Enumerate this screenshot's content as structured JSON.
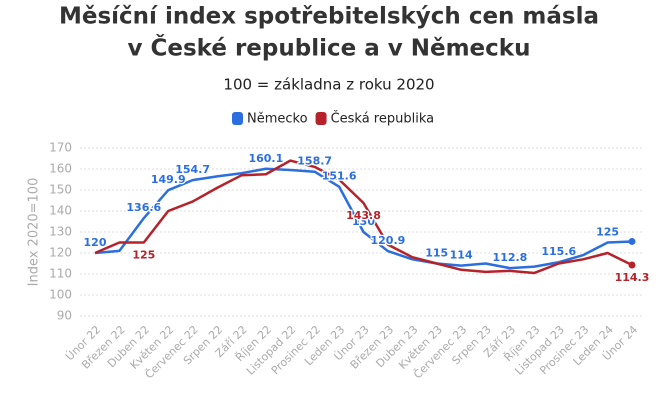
{
  "chart_data": {
    "type": "line",
    "title": [
      "Měsíční index spotřebitelských cen másla",
      "v České republice a v Německu"
    ],
    "subtitle": "100 = základna z roku 2020",
    "y_label": "Index 2020=100",
    "categories": [
      "Únor 22",
      "Březen 22",
      "Duben 22",
      "Květen 22",
      "Červenec 22",
      "Srpen 22",
      "Září 22",
      "Říjen 22",
      "Listopad 22",
      "Prosinec 22",
      "Leden 23",
      "Únor 23",
      "Březen 23",
      "Duben 23",
      "Květen 23",
      "Červenec 23",
      "Srpen 23",
      "Září 23",
      "Říjen 23",
      "Listopad 23",
      "Prosinec 23",
      "Leden 24",
      "Únor 24"
    ],
    "series": [
      {
        "name": "Německo",
        "color": "#2a6ee0",
        "values": [
          120,
          121,
          136.6,
          149.9,
          154.7,
          156.5,
          158,
          160.1,
          159.5,
          158.7,
          151.6,
          130,
          120.9,
          117,
          115,
          114,
          115,
          112.8,
          113.5,
          115.6,
          119,
          125,
          125.5
        ],
        "value_labels": [
          "120",
          null,
          "136.6",
          "149.9",
          "154.7",
          null,
          null,
          "160.1",
          null,
          "158.7",
          "151.6",
          "130",
          "120.9",
          null,
          "115",
          "114",
          null,
          "112.8",
          null,
          "115.6",
          null,
          "125",
          null
        ]
      },
      {
        "name": "Česká republika",
        "color": "#b5222a",
        "values": [
          120,
          125,
          125,
          140,
          144.5,
          151,
          157,
          157.5,
          164,
          161,
          155,
          143.8,
          124,
          118,
          115,
          112,
          111,
          111.5,
          110.5,
          115,
          117,
          120,
          114.3
        ],
        "value_labels": [
          null,
          null,
          "125",
          null,
          null,
          null,
          null,
          null,
          null,
          null,
          null,
          "143.8",
          null,
          null,
          null,
          null,
          null,
          null,
          null,
          null,
          null,
          null,
          "114.3"
        ]
      }
    ],
    "ylim": [
      90,
      170
    ],
    "yticks": [
      90,
      100,
      110,
      120,
      130,
      140,
      150,
      160,
      170
    ],
    "grid": true
  }
}
